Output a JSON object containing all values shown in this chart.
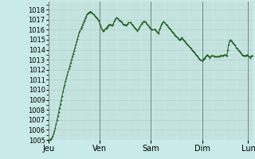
{
  "title": "",
  "background_color": "#c8eae8",
  "plot_bg_color": "#c8eae8",
  "grid_color": "#b0ceca",
  "minor_grid_color": "#c0d8d4",
  "line_color": "#1a5c1a",
  "marker_color": "#1a5c1a",
  "ylim": [
    1005,
    1018.8
  ],
  "yticks": [
    1005,
    1006,
    1007,
    1008,
    1009,
    1010,
    1011,
    1012,
    1013,
    1014,
    1015,
    1016,
    1017,
    1018
  ],
  "day_labels": [
    "Jeu",
    "Ven",
    "Sam",
    "Dim",
    "Lun"
  ],
  "day_positions": [
    0,
    60,
    120,
    180,
    234
  ],
  "total_points": 240,
  "xlabel_fontsize": 7,
  "tick_fontsize": 6,
  "values": [
    1005.0,
    1005.0,
    1005.0,
    1005.1,
    1005.2,
    1005.4,
    1005.6,
    1005.9,
    1006.2,
    1006.6,
    1007.0,
    1007.4,
    1007.8,
    1008.2,
    1008.6,
    1009.0,
    1009.4,
    1009.8,
    1010.2,
    1010.5,
    1010.9,
    1011.2,
    1011.5,
    1011.8,
    1012.1,
    1012.4,
    1012.7,
    1013.0,
    1013.3,
    1013.6,
    1013.9,
    1014.2,
    1014.5,
    1014.8,
    1015.1,
    1015.4,
    1015.7,
    1015.9,
    1016.1,
    1016.3,
    1016.5,
    1016.7,
    1016.9,
    1017.1,
    1017.3,
    1017.5,
    1017.6,
    1017.7,
    1017.7,
    1017.8,
    1017.8,
    1017.7,
    1017.6,
    1017.5,
    1017.4,
    1017.3,
    1017.2,
    1017.1,
    1017.0,
    1016.9,
    1016.6,
    1016.4,
    1016.2,
    1016.0,
    1015.9,
    1015.9,
    1016.0,
    1016.1,
    1016.2,
    1016.3,
    1016.4,
    1016.5,
    1016.5,
    1016.5,
    1016.4,
    1016.4,
    1016.6,
    1016.8,
    1017.0,
    1017.1,
    1017.2,
    1017.1,
    1017.0,
    1016.9,
    1016.9,
    1016.8,
    1016.7,
    1016.6,
    1016.5,
    1016.5,
    1016.5,
    1016.4,
    1016.5,
    1016.6,
    1016.7,
    1016.7,
    1016.7,
    1016.6,
    1016.5,
    1016.4,
    1016.3,
    1016.2,
    1016.1,
    1016.0,
    1015.9,
    1016.0,
    1016.1,
    1016.3,
    1016.4,
    1016.6,
    1016.7,
    1016.8,
    1016.8,
    1016.8,
    1016.7,
    1016.6,
    1016.5,
    1016.4,
    1016.3,
    1016.2,
    1016.1,
    1016.0,
    1016.0,
    1016.0,
    1016.0,
    1016.0,
    1015.9,
    1015.8,
    1015.7,
    1015.6,
    1016.0,
    1016.2,
    1016.4,
    1016.6,
    1016.7,
    1016.8,
    1016.7,
    1016.6,
    1016.5,
    1016.4,
    1016.3,
    1016.2,
    1016.1,
    1016.0,
    1015.9,
    1015.8,
    1015.7,
    1015.6,
    1015.5,
    1015.4,
    1015.3,
    1015.2,
    1015.1,
    1015.0,
    1015.0,
    1015.1,
    1015.2,
    1015.1,
    1015.0,
    1014.9,
    1014.8,
    1014.7,
    1014.6,
    1014.5,
    1014.4,
    1014.3,
    1014.2,
    1014.1,
    1014.0,
    1013.9,
    1013.8,
    1013.7,
    1013.6,
    1013.5,
    1013.4,
    1013.3,
    1013.2,
    1013.1,
    1013.0,
    1012.9,
    1012.9,
    1013.0,
    1013.1,
    1013.2,
    1013.3,
    1013.4,
    1013.5,
    1013.4,
    1013.3,
    1013.2,
    1013.3,
    1013.4,
    1013.4,
    1013.4,
    1013.3,
    1013.3,
    1013.3,
    1013.3,
    1013.3,
    1013.3,
    1013.3,
    1013.4,
    1013.4,
    1013.4,
    1013.4,
    1013.4,
    1013.5,
    1013.5,
    1013.4,
    1013.4,
    1014.0,
    1014.5,
    1014.8,
    1015.0,
    1014.9,
    1014.8,
    1014.7,
    1014.6,
    1014.5,
    1014.4,
    1014.2,
    1014.1,
    1014.0,
    1013.9,
    1013.8,
    1013.7,
    1013.6,
    1013.5,
    1013.4,
    1013.4,
    1013.4,
    1013.4,
    1013.4,
    1013.5,
    1013.4,
    1013.3,
    1013.2,
    1013.3,
    1013.4,
    1013.4
  ]
}
